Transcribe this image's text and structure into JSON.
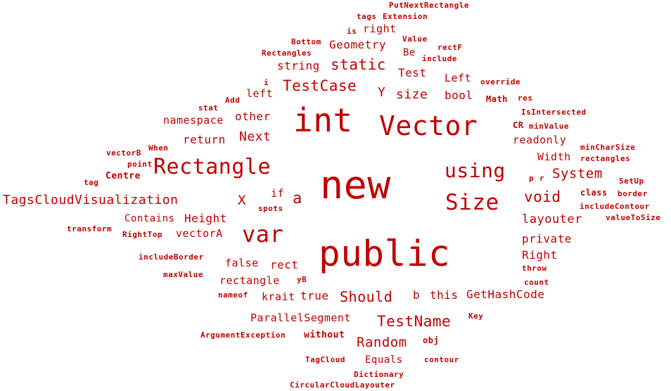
{
  "colors": {
    "word": "#c00000",
    "background": "#ffffff"
  },
  "words": [
    "PutNextRectangle",
    "tags",
    "Extension",
    "is",
    "right",
    "Bottom",
    "Value",
    "rectF",
    "Geometry",
    "Be",
    "Rectangles",
    "include",
    "string",
    "static",
    "Test",
    "i",
    "Left",
    "override",
    "TestCase",
    "left",
    "Y",
    "size",
    "bool",
    "Math",
    "res",
    "Add",
    "stat",
    "IsIntersected",
    "namespace",
    "other",
    "int",
    "Vector",
    "CR",
    "minValue",
    "Next",
    "return",
    "readonly",
    "When",
    "minCharSize",
    "vectorB",
    "Width",
    "rectangles",
    "point",
    "Rectangle",
    "using",
    "tag",
    "Centre",
    "new",
    "p",
    "r",
    "System",
    "SetUp",
    "if",
    "class",
    "border",
    "TagsCloudVisualization",
    "X",
    "a",
    "Size",
    "void",
    "spots",
    "includeContour",
    "Contains",
    "Height",
    "layouter",
    "valueToSize",
    "transform",
    "var",
    "RightTop",
    "vectorA",
    "private",
    "public",
    "Right",
    "includeBorder",
    "false",
    "rect",
    "throw",
    "maxValue",
    "yB",
    "count",
    "rectangle",
    "nameof",
    "krait",
    "true",
    "Should",
    "b",
    "this",
    "GetHashCode",
    "ParallelSegment",
    "Key",
    "TestName",
    "ArgumentException",
    "without",
    "Random",
    "obj",
    "TagCloud",
    "Equals",
    "contour",
    "Dictionary",
    "CircularCloudLayouter"
  ]
}
